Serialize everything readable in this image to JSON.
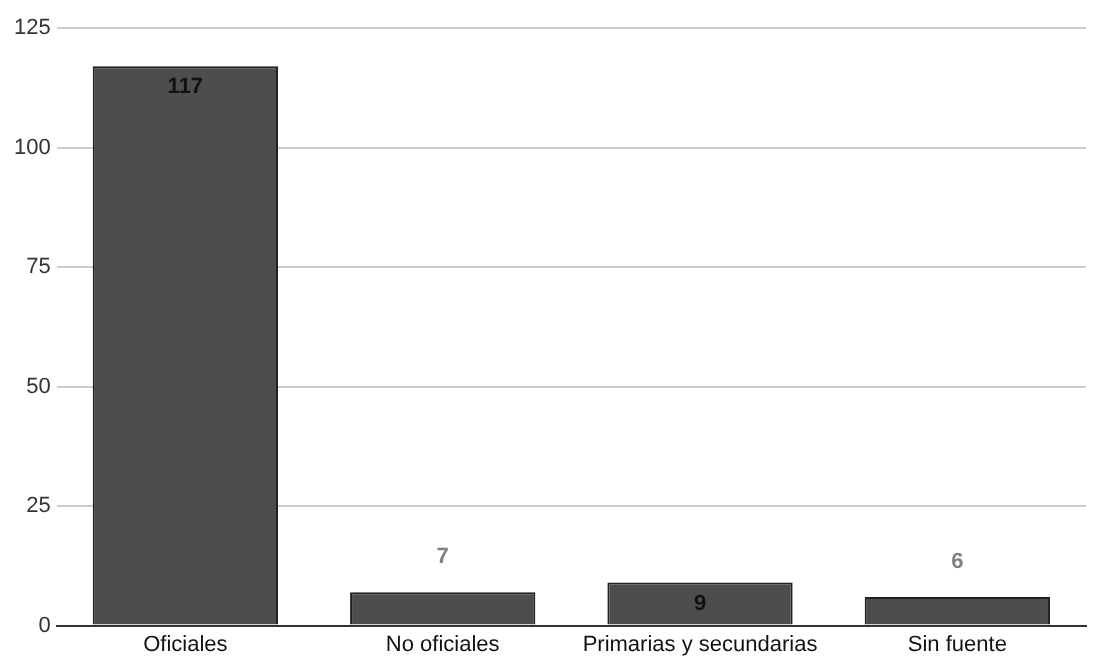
{
  "chart_data": {
    "type": "bar",
    "categories": [
      "Oficiales",
      "No oficiales",
      "Primarias y secundarias",
      "Sin fuente"
    ],
    "values": [
      117,
      7,
      9,
      6
    ],
    "color": "#4d4d4d",
    "ylim": [
      0,
      125
    ],
    "yticks": [
      0,
      25,
      50,
      75,
      100,
      125
    ],
    "grid": "y",
    "data_labels": true
  }
}
